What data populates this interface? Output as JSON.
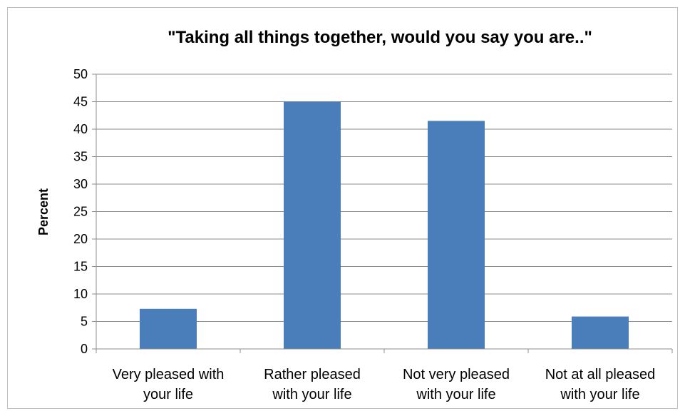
{
  "chart_data": {
    "type": "bar",
    "title": "\"Taking all things together, would you say you are..\"",
    "xlabel": "",
    "ylabel": "Percent",
    "ylim": [
      0,
      50
    ],
    "yticks": [
      0,
      5,
      10,
      15,
      20,
      25,
      30,
      35,
      40,
      45,
      50
    ],
    "grid": true,
    "legend": "none",
    "categories": [
      [
        "Very pleased with",
        "your life"
      ],
      [
        "Rather pleased",
        "with your life"
      ],
      [
        "Not very pleased",
        "with your life"
      ],
      [
        "Not at all pleased",
        "with your life"
      ]
    ],
    "values": [
      7.3,
      45.0,
      41.5,
      5.9
    ],
    "bar_color": "#4a7ebb"
  }
}
